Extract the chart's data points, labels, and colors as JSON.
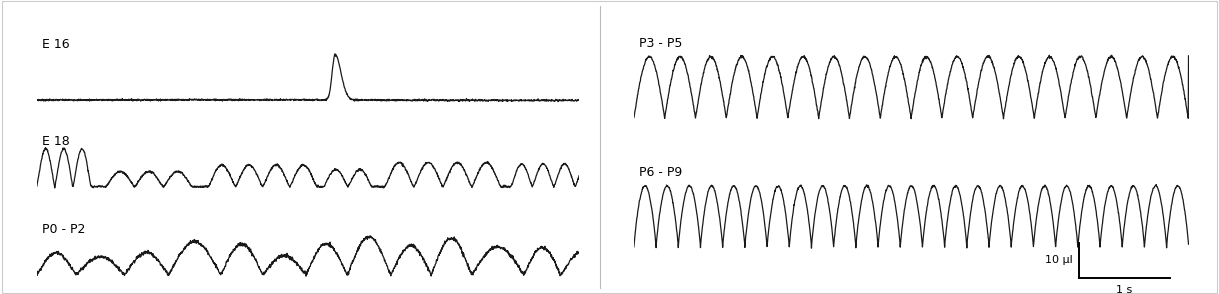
{
  "background_color": "#ffffff",
  "left_labels": [
    "E 16",
    "E 18",
    "P0 - P2"
  ],
  "right_labels": [
    "P3 - P5",
    "P6 - P9"
  ],
  "scale_bar_text": "10 µl",
  "scale_bar_text2": "1 s",
  "line_color": "#1a1a1a",
  "line_width": 0.9,
  "divider_color": "#bbbbbb",
  "border_color": "#cccccc"
}
